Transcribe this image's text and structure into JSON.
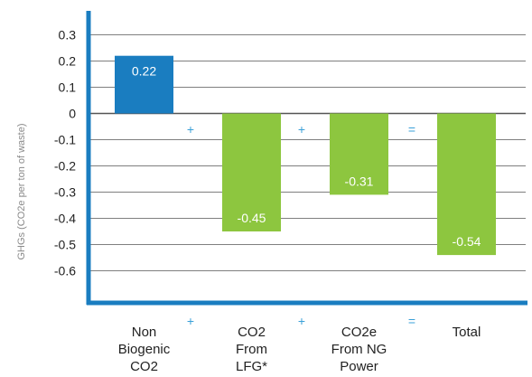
{
  "chart_data": {
    "type": "bar",
    "ylabel": "GHGs (CO2e per ton of waste)",
    "ylim": [
      -0.7,
      0.35
    ],
    "y_ticks": [
      0.3,
      0.2,
      0.1,
      0,
      -0.1,
      -0.2,
      -0.3,
      -0.4,
      -0.5,
      -0.6
    ],
    "y_tick_labels": [
      "0.3",
      "0.2",
      "0.1",
      "0",
      "-0.1",
      "-0.2",
      "-0.3",
      "-0.4",
      "-0.5",
      "-0.6"
    ],
    "grid": true,
    "categories": [
      [
        "Non",
        "Biogenic",
        "CO2"
      ],
      [
        "CO2",
        "From",
        "LFG*"
      ],
      [
        "CO2e",
        "From NG",
        "Power"
      ],
      [
        "Total"
      ]
    ],
    "values": [
      0.22,
      -0.45,
      -0.31,
      -0.54
    ],
    "value_labels": [
      "0.22",
      "-0.45",
      "-0.31",
      "-0.54"
    ],
    "bar_colors": [
      "#1a7dc0",
      "#8dc63f",
      "#8dc63f",
      "#8dc63f"
    ],
    "operators": [
      "+",
      "+",
      "="
    ],
    "axis_color": "#1a7dc0",
    "grid_color": "#555555",
    "operator_color": "#3aa0d8"
  }
}
